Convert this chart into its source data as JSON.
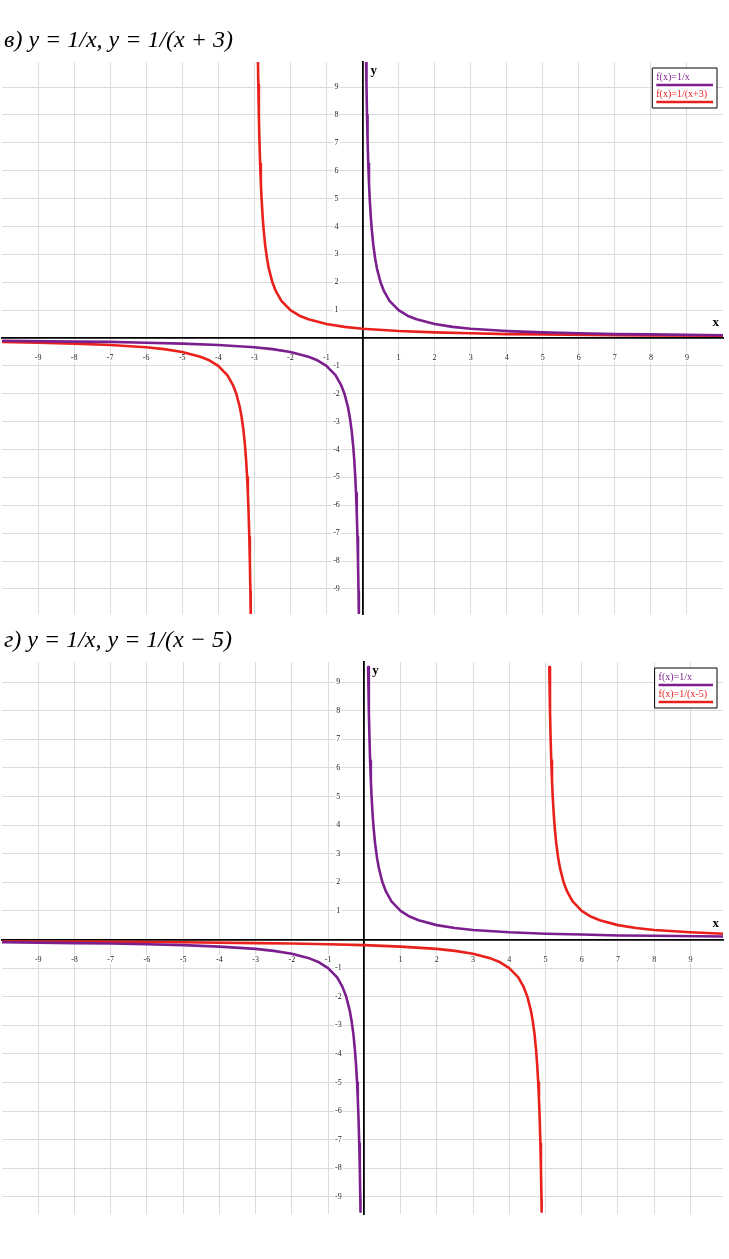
{
  "chart_data": [
    {
      "type": "line",
      "title": "в) y = 1/x,     y = 1/(x + 3)",
      "xlabel": "x",
      "ylabel": "y",
      "xlim": [
        -10,
        10
      ],
      "ylim": [
        -9.9,
        9.9
      ],
      "xticks": [
        -9,
        -8,
        -7,
        -6,
        -5,
        -4,
        -3,
        -2,
        -1,
        1,
        2,
        3,
        4,
        5,
        6,
        7,
        8,
        9
      ],
      "yticks": [
        -9,
        -8,
        -7,
        -6,
        -5,
        -4,
        -3,
        -2,
        -1,
        1,
        2,
        3,
        4,
        5,
        6,
        7,
        8,
        9
      ],
      "grid": true,
      "legend": "top right",
      "series": [
        {
          "name": "f(x)=1/x",
          "color": "#7b1f8f",
          "x": [
            -10,
            -8,
            -7,
            -6,
            -5,
            -4,
            -3,
            -2.5,
            -2,
            -1.5,
            -1.25,
            -1,
            -0.75,
            -0.6,
            -0.5,
            -0.4,
            -0.35,
            -0.3,
            -0.26,
            -0.23,
            -0.2,
            -0.18,
            -0.16,
            -0.14,
            -0.125,
            -0.11,
            -0.101,
            0,
            0.101,
            0.11,
            0.125,
            0.14,
            0.16,
            0.18,
            0.2,
            0.23,
            0.26,
            0.3,
            0.35,
            0.4,
            0.5,
            0.6,
            0.75,
            1,
            1.25,
            1.5,
            2,
            2.5,
            3,
            4,
            5,
            6,
            7,
            8,
            10
          ],
          "values": [
            -0.1,
            -0.13,
            -0.14,
            -0.17,
            -0.2,
            -0.25,
            -0.33,
            -0.4,
            -0.5,
            -0.67,
            -0.8,
            -1,
            -1.33,
            -1.67,
            -2,
            -2.5,
            -2.86,
            -3.33,
            -3.85,
            -4.35,
            -5,
            -5.56,
            -6.25,
            -7.14,
            -8,
            -9.09,
            -9.9,
            null,
            9.9,
            9.09,
            8,
            7.14,
            6.25,
            5.56,
            5,
            4.35,
            3.85,
            3.33,
            2.86,
            2.5,
            2,
            1.67,
            1.33,
            1,
            0.8,
            0.67,
            0.5,
            0.4,
            0.33,
            0.25,
            0.2,
            0.17,
            0.14,
            0.13,
            0.1
          ]
        },
        {
          "name": "f(x)=1/(x+3)",
          "color": "#e8211c",
          "x": [
            -10,
            -9,
            -8,
            -7,
            -6,
            -5.5,
            -5,
            -4.5,
            -4.25,
            -4,
            -3.75,
            -3.6,
            -3.5,
            -3.4,
            -3.35,
            -3.3,
            -3.26,
            -3.23,
            -3.2,
            -3.18,
            -3.16,
            -3.14,
            -3.125,
            -3.11,
            -3.101,
            -3,
            -2.899,
            -2.89,
            -2.875,
            -2.86,
            -2.84,
            -2.82,
            -2.8,
            -2.77,
            -2.74,
            -2.7,
            -2.65,
            -2.6,
            -2.5,
            -2.4,
            -2.25,
            -2,
            -1.75,
            -1.5,
            -1,
            -0.5,
            0,
            1,
            2,
            3,
            4,
            5,
            7,
            8,
            10
          ],
          "values": [
            -0.14,
            -0.17,
            -0.2,
            -0.25,
            -0.33,
            -0.4,
            -0.5,
            -0.67,
            -0.8,
            -1,
            -1.33,
            -1.67,
            -2,
            -2.5,
            -2.86,
            -3.33,
            -3.85,
            -4.35,
            -5,
            -5.56,
            -6.25,
            -7.14,
            -8,
            -9.09,
            -9.9,
            null,
            9.9,
            9.09,
            8,
            7.14,
            6.25,
            5.56,
            5,
            4.35,
            3.85,
            3.33,
            2.86,
            2.5,
            2,
            1.67,
            1.33,
            1,
            0.8,
            0.67,
            0.5,
            0.4,
            0.33,
            0.25,
            0.2,
            0.17,
            0.14,
            0.13,
            0.1,
            0.09,
            0.08
          ]
        }
      ]
    },
    {
      "type": "line",
      "title": "г) y = 1/x,     y = 1/(x − 5)",
      "xlabel": "x",
      "ylabel": "y",
      "xlim": [
        -10,
        9.9
      ],
      "ylim": [
        -9.6,
        9.7
      ],
      "xticks": [
        -9,
        -8,
        -7,
        -6,
        -5,
        -4,
        -3,
        -2,
        -1,
        1,
        2,
        3,
        4,
        5,
        6,
        7,
        8,
        9
      ],
      "yticks": [
        -9,
        -8,
        -7,
        -6,
        -5,
        -4,
        -3,
        -2,
        -1,
        1,
        2,
        3,
        4,
        5,
        6,
        7,
        8,
        9
      ],
      "grid": true,
      "legend": "top right",
      "series": [
        {
          "name": "f(x)=1/x",
          "color": "#7b1f8f",
          "x": [
            -10,
            -8,
            -7,
            -6,
            -5,
            -4,
            -3,
            -2.5,
            -2,
            -1.5,
            -1.25,
            -1,
            -0.75,
            -0.6,
            -0.5,
            -0.4,
            -0.35,
            -0.3,
            -0.26,
            -0.23,
            -0.2,
            -0.18,
            -0.16,
            -0.14,
            -0.125,
            -0.11,
            -0.105,
            0,
            0.105,
            0.125,
            0.14,
            0.16,
            0.18,
            0.2,
            0.23,
            0.26,
            0.3,
            0.35,
            0.4,
            0.5,
            0.6,
            0.75,
            1,
            1.25,
            1.5,
            2,
            2.5,
            3,
            4,
            5,
            6,
            7,
            8,
            9.9
          ],
          "values": [
            -0.1,
            -0.13,
            -0.14,
            -0.17,
            -0.2,
            -0.25,
            -0.33,
            -0.4,
            -0.5,
            -0.67,
            -0.8,
            -1,
            -1.33,
            -1.67,
            -2,
            -2.5,
            -2.86,
            -3.33,
            -3.85,
            -4.35,
            -5,
            -5.56,
            -6.25,
            -7.14,
            -8,
            -9.09,
            -9.52,
            null,
            9.52,
            8,
            7.14,
            6.25,
            5.56,
            5,
            4.35,
            3.85,
            3.33,
            2.86,
            2.5,
            2,
            1.67,
            1.33,
            1,
            0.8,
            0.67,
            0.5,
            0.4,
            0.33,
            0.25,
            0.2,
            0.17,
            0.14,
            0.13,
            0.1
          ]
        },
        {
          "name": "f(x)=1/(x-5)",
          "color": "#e8211c",
          "x": [
            -10,
            -7,
            -5,
            -3,
            -2,
            -1,
            0,
            1,
            2,
            2.5,
            3,
            3.5,
            3.75,
            4,
            4.25,
            4.4,
            4.5,
            4.6,
            4.65,
            4.7,
            4.74,
            4.77,
            4.8,
            4.82,
            4.84,
            4.86,
            4.875,
            4.89,
            4.895,
            5,
            5.105,
            5.125,
            5.14,
            5.16,
            5.18,
            5.2,
            5.23,
            5.26,
            5.3,
            5.35,
            5.4,
            5.5,
            5.6,
            5.75,
            6,
            6.25,
            6.5,
            7,
            7.5,
            8,
            9,
            9.9
          ],
          "values": [
            -0.07,
            -0.08,
            -0.1,
            -0.13,
            -0.14,
            -0.17,
            -0.2,
            -0.25,
            -0.33,
            -0.4,
            -0.5,
            -0.67,
            -0.8,
            -1,
            -1.33,
            -1.67,
            -2,
            -2.5,
            -2.86,
            -3.33,
            -3.85,
            -4.35,
            -5,
            -5.56,
            -6.25,
            -7.14,
            -8,
            -9.09,
            -9.52,
            null,
            9.52,
            8,
            7.14,
            6.25,
            5.56,
            5,
            4.35,
            3.85,
            3.33,
            2.86,
            2.5,
            2,
            1.67,
            1.33,
            1,
            0.8,
            0.67,
            0.5,
            0.4,
            0.33,
            0.25,
            0.2
          ]
        }
      ]
    }
  ]
}
